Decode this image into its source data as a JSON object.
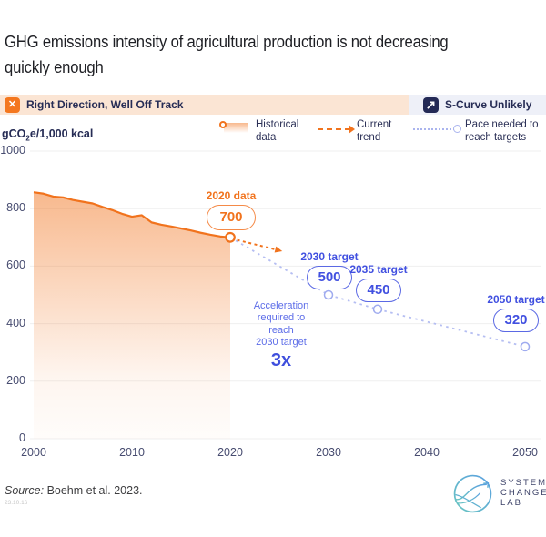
{
  "title": "GHG emissions intensity of agricultural production is not decreasing\nquickly enough",
  "status_banner": {
    "left": {
      "label": "Right Direction, Well Off Track",
      "icon": "x-icon",
      "bg": "#FBE5D4",
      "badge_color": "#F4771F"
    },
    "right": {
      "label": "S-Curve Unlikely",
      "icon": "s-curve-arrow-icon",
      "bg": "#EEF0F8",
      "badge_color": "#242A56"
    }
  },
  "legend": [
    {
      "label": "Historical data",
      "swatch": "orange-line-with-gradient-area"
    },
    {
      "label": "Current trend",
      "swatch": "orange-dashed-arrow"
    },
    {
      "label": "Pace needed to reach targets",
      "swatch": "blue-dotted-line-with-circle"
    }
  ],
  "colors": {
    "accent_orange": "#F1731D",
    "navy": "#262C55",
    "target_blue": "#4150E0",
    "pace_line_blue": "#B5BEF2",
    "gridline": "#EFEFEF"
  },
  "chart_data": {
    "type": "line",
    "title": "GHG emissions intensity of agricultural production",
    "ylabel": "gCO2e/1,000 kcal",
    "unit_label": {
      "prefix": "gCO",
      "sub": "2",
      "suffix": "e/1,000 kcal"
    },
    "ylim": [
      0,
      1000
    ],
    "yticks": [
      0,
      200,
      400,
      600,
      800,
      1000
    ],
    "xticks": [
      2000,
      2010,
      2020,
      2030,
      2040,
      2050
    ],
    "grid": "horizontal",
    "series": [
      {
        "name": "Historical data",
        "style": "area-line",
        "color": "#F1731D",
        "x": [
          2000,
          2001,
          2002,
          2003,
          2004,
          2005,
          2006,
          2007,
          2008,
          2009,
          2010,
          2011,
          2012,
          2013,
          2014,
          2015,
          2016,
          2017,
          2018,
          2019,
          2020
        ],
        "y": [
          857,
          852,
          842,
          839,
          830,
          824,
          818,
          806,
          795,
          782,
          772,
          777,
          752,
          744,
          738,
          731,
          724,
          716,
          709,
          703,
          700
        ]
      },
      {
        "name": "Pace needed to reach targets",
        "style": "dotted-line-open-circles",
        "color": "#B5BEF2",
        "x": [
          2020,
          2030,
          2035,
          2050
        ],
        "y": [
          700,
          500,
          450,
          320
        ],
        "marker_points": [
          [
            2030,
            500
          ],
          [
            2035,
            450
          ],
          [
            2050,
            320
          ]
        ]
      }
    ],
    "trend_arrow": {
      "name": "Current trend",
      "color": "#F1731D",
      "x1": 2020.7,
      "y1": 691,
      "x2": 2025.3,
      "y2": 652
    },
    "annotations": {
      "data_2020": {
        "label": "2020 data",
        "value": "700"
      },
      "target_2030": {
        "label": "2030 target",
        "value": "500"
      },
      "target_2035": {
        "label": "2035 target",
        "value": "450"
      },
      "target_2050": {
        "label": "2050 target",
        "value": "320"
      },
      "acceleration": {
        "text": "Acceleration\nrequired to\nreach\n2030 target",
        "multiplier": "3x"
      }
    }
  },
  "source": {
    "prefix": "Source:",
    "text": " Boehm et al. 2023."
  },
  "stamp": "23.10.16",
  "logo": {
    "lines": [
      "SYSTEMS",
      "CHANGE",
      "LAB"
    ]
  }
}
